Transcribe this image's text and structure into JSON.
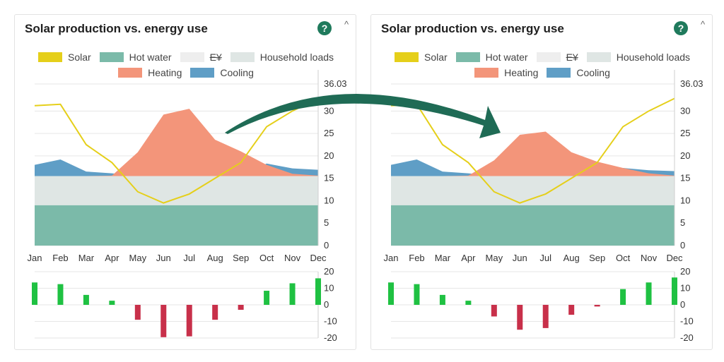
{
  "panels": [
    {
      "title": "Solar production vs. energy use",
      "help_glyph": "?",
      "collapse_glyph": "^",
      "legend": [
        {
          "label": "Solar",
          "color": "#e5cf1a",
          "struck": false
        },
        {
          "label": "Hot water",
          "color": "#7bbaa9",
          "struck": false
        },
        {
          "label": "E¥",
          "color": "#eeeeee",
          "struck": true
        },
        {
          "label": "Household loads",
          "color": "#dfe6e4",
          "struck": false
        },
        {
          "label": "Heating",
          "color": "#f3957a",
          "struck": false
        },
        {
          "label": "Cooling",
          "color": "#5f9ec6",
          "struck": false
        }
      ]
    },
    {
      "title": "Solar production vs. energy use",
      "help_glyph": "?",
      "collapse_glyph": "^",
      "legend": [
        {
          "label": "Solar",
          "color": "#e5cf1a",
          "struck": false
        },
        {
          "label": "Hot water",
          "color": "#7bbaa9",
          "struck": false
        },
        {
          "label": "E¥",
          "color": "#eeeeee",
          "struck": true
        },
        {
          "label": "Household loads",
          "color": "#dfe6e4",
          "struck": false
        },
        {
          "label": "Heating",
          "color": "#f3957a",
          "struck": false
        },
        {
          "label": "Cooling",
          "color": "#5f9ec6",
          "struck": false
        }
      ]
    }
  ],
  "chart_data": [
    {
      "type": "area",
      "title": "Solar production vs. energy use",
      "categories": [
        "Jan",
        "Feb",
        "Mar",
        "Apr",
        "May",
        "Jun",
        "Jul",
        "Aug",
        "Sep",
        "Oct",
        "Nov",
        "Dec"
      ],
      "ylim": [
        0,
        36.03
      ],
      "yticks": [
        0,
        5,
        10,
        15,
        20,
        25,
        30,
        36.03
      ],
      "ytick_labels": [
        "0",
        "5",
        "10",
        "15",
        "20",
        "25",
        "30",
        "36.03"
      ],
      "series": [
        {
          "name": "Hot water",
          "stack_top": [
            9,
            9,
            9,
            9,
            9,
            9,
            9,
            9,
            9,
            9,
            9,
            9
          ]
        },
        {
          "name": "Household loads",
          "stack_top": [
            15.5,
            15.5,
            15.5,
            15.5,
            15.5,
            15.5,
            15.5,
            15.5,
            15.5,
            15.5,
            15.5,
            15.5
          ]
        },
        {
          "name": "Heating",
          "stack_top": [
            15.5,
            15.5,
            15.5,
            15.6,
            20.8,
            29.2,
            30.5,
            23.6,
            21.0,
            18.0,
            16.0,
            15.6
          ]
        },
        {
          "name": "Cooling",
          "stack_top": [
            18.0,
            19.2,
            16.5,
            16.1,
            15.5,
            15.5,
            15.5,
            15.5,
            15.5,
            18.3,
            17.2,
            16.9
          ]
        },
        {
          "name": "Solar",
          "values": [
            31.2,
            31.5,
            22.5,
            18.5,
            12.0,
            9.5,
            11.5,
            15.0,
            18.5,
            26.5,
            30.0,
            32.8
          ]
        }
      ],
      "balance": {
        "values": [
          13.5,
          12.5,
          6.0,
          2.5,
          -9.0,
          -19.5,
          -19.0,
          -9.0,
          -3.0,
          8.5,
          13.0,
          16.0
        ],
        "ylim": [
          -20,
          20
        ],
        "ytick_labels": [
          "20",
          "10",
          "0",
          "-10",
          "-20"
        ],
        "positive_color": "#1fc142",
        "negative_color": "#c8304a"
      }
    },
    {
      "type": "area",
      "title": "Solar production vs. energy use",
      "categories": [
        "Jan",
        "Feb",
        "Mar",
        "Apr",
        "May",
        "Jun",
        "Jul",
        "Aug",
        "Sep",
        "Oct",
        "Nov",
        "Dec"
      ],
      "ylim": [
        0,
        36.03
      ],
      "yticks": [
        0,
        5,
        10,
        15,
        20,
        25,
        30,
        36.03
      ],
      "ytick_labels": [
        "0",
        "5",
        "10",
        "15",
        "20",
        "25",
        "30",
        "36.03"
      ],
      "series": [
        {
          "name": "Hot water",
          "stack_top": [
            9,
            9,
            9,
            9,
            9,
            9,
            9,
            9,
            9,
            9,
            9,
            9
          ]
        },
        {
          "name": "Household loads",
          "stack_top": [
            15.5,
            15.5,
            15.5,
            15.5,
            15.5,
            15.5,
            15.5,
            15.5,
            15.5,
            15.5,
            15.5,
            15.5
          ]
        },
        {
          "name": "Heating",
          "stack_top": [
            15.5,
            15.5,
            15.5,
            15.6,
            19.0,
            24.7,
            25.4,
            20.8,
            18.7,
            17.3,
            16.1,
            15.6
          ]
        },
        {
          "name": "Cooling",
          "stack_top": [
            18.0,
            19.2,
            16.5,
            16.1,
            15.5,
            15.5,
            15.5,
            15.5,
            15.5,
            17.3,
            16.8,
            16.6
          ]
        },
        {
          "name": "Solar",
          "values": [
            31.2,
            31.5,
            22.5,
            18.5,
            12.0,
            9.5,
            11.5,
            15.0,
            18.5,
            26.5,
            30.0,
            32.8
          ]
        }
      ],
      "balance": {
        "values": [
          13.5,
          12.5,
          6.0,
          2.5,
          -7.0,
          -15.0,
          -14.0,
          -6.0,
          -1.0,
          9.5,
          13.5,
          16.5
        ],
        "ylim": [
          -20,
          20
        ],
        "ytick_labels": [
          "20",
          "10",
          "0",
          "-10",
          "-20"
        ],
        "positive_color": "#1fc142",
        "negative_color": "#c8304a"
      }
    }
  ]
}
